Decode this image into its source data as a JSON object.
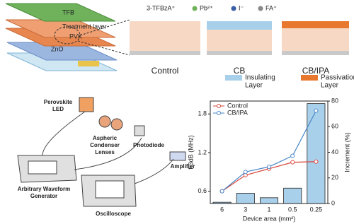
{
  "device": {
    "layers": [
      "TFB",
      "Treatment layer",
      "PVK",
      "ZnO"
    ]
  },
  "ions_legend": [
    "3-TFBzA⁺",
    "Pb²⁺",
    "I⁻",
    "FA⁺"
  ],
  "panels": [
    "Control",
    "CB",
    "CB/IPA"
  ],
  "layer_legend": [
    {
      "lines": [
        "Insulating",
        "Layer"
      ],
      "color": "#a9d0ea"
    },
    {
      "lines": [
        "Passivation",
        "Layer"
      ],
      "color": "#e8782e"
    }
  ],
  "setup": {
    "labels": [
      {
        "lines": [
          "Perovskite",
          "LED"
        ]
      },
      {
        "lines": [
          "Aspheric",
          "Condenser",
          "Lenses"
        ]
      },
      {
        "lines": [
          "Photodiode"
        ]
      },
      {
        "lines": [
          "Amplifier"
        ]
      },
      {
        "lines": [
          "Arbitrary Waveform",
          "Generator"
        ]
      },
      {
        "lines": [
          "Oscilloscope"
        ]
      }
    ]
  },
  "chart_data": {
    "type": "combo",
    "categories": [
      "6",
      "3",
      "1",
      "0.5",
      "0.25"
    ],
    "x_label": "Device area (mm²)",
    "y_label": "f-3dB (MHz)",
    "y2_label": "Increment (%)",
    "ylim": [
      0.41,
      2.0
    ],
    "yticks": [
      0.6,
      1.2,
      1.8
    ],
    "y2lim": [
      0,
      80
    ],
    "y2ticks": [
      0,
      20,
      40,
      60,
      80
    ],
    "series": [
      {
        "name": "Control",
        "kind": "line",
        "color": "#d9473b",
        "values": [
          0.6,
          0.85,
          0.95,
          1.05,
          1.06
        ]
      },
      {
        "name": "CB/IPA",
        "kind": "line",
        "color": "#4a88c7",
        "values": [
          0.6,
          0.9,
          0.98,
          1.15,
          1.85
        ]
      },
      {
        "kind": "bar",
        "axis": "y2",
        "color": "#a9d0ea",
        "values": [
          1,
          8,
          4.5,
          12,
          78
        ]
      }
    ],
    "legend": "upper left"
  }
}
